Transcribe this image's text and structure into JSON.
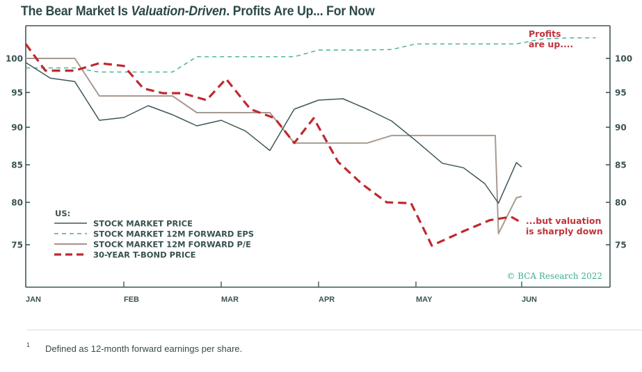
{
  "chart_data": {
    "type": "line",
    "title_parts": [
      "The Bear Market Is ",
      "Valuation-Driven",
      ". Profits Are Up... For Now"
    ],
    "title": "The Bear Market Is Valuation-Driven. Profits Are Up... For Now",
    "xlabel": "",
    "ylabel": "",
    "x_tick_labels": [
      "JAN",
      "FEB",
      "MAR",
      "APR",
      "MAY",
      "JUN"
    ],
    "y_ticks": [
      100,
      95,
      90,
      85,
      80,
      75
    ],
    "ylim": [
      70,
      104
    ],
    "grid": false,
    "legend": {
      "title": "US:",
      "placement": "bottom-left",
      "entries": [
        {
          "name": "STOCK MARKET PRICE",
          "color": "#3d5656",
          "style": "solid"
        },
        {
          "name": "STOCK MARKET 12M FORWARD EPS",
          "color": "#3fae8f",
          "style": "dashed"
        },
        {
          "name": "STOCK MARKET 12M FORWARD P/E",
          "color": "#a69a90",
          "style": "solid"
        },
        {
          "name": "30-YEAR T-BOND PRICE",
          "color": "#c0282f",
          "style": "dashed-thick"
        }
      ]
    },
    "x": [
      0,
      0.25,
      0.5,
      0.75,
      1.0,
      1.25,
      1.5,
      1.75,
      2.0,
      2.25,
      2.5,
      2.75,
      3.0,
      3.25,
      3.5,
      3.75,
      4.0,
      4.25,
      4.5,
      4.75,
      5.0
    ],
    "x_unit": "months since start of January (JAN=0 ... JUN=5)",
    "series": [
      {
        "name": "STOCK MARKET PRICE",
        "values": [
          99.4,
          97.1,
          96.6,
          91.0,
          91.4,
          93.1,
          91.8,
          90.2,
          91.0,
          89.5,
          86.9,
          92.6,
          93.9,
          94.1,
          92.6,
          90.9,
          88.2,
          85.2,
          84.6,
          82.5,
          79.9,
          85.3,
          84.7
        ],
        "x": [
          0,
          0.25,
          0.5,
          0.75,
          1.0,
          1.25,
          1.5,
          1.75,
          2.0,
          2.25,
          2.5,
          2.75,
          3.0,
          3.25,
          3.5,
          3.75,
          4.0,
          4.25,
          4.45,
          4.65,
          4.78,
          4.95,
          5.0
        ]
      },
      {
        "name": "STOCK MARKET 12M FORWARD EPS",
        "values": [
          98.6,
          98.6,
          98.6,
          98.0,
          98.0,
          98.0,
          98.0,
          100.3,
          100.3,
          100.3,
          100.3,
          100.3,
          101.5,
          101.5,
          101.5,
          101.6,
          102.6,
          102.6,
          102.6,
          102.6,
          102.6,
          103.5,
          103.7,
          103.7
        ],
        "x": [
          0,
          0.25,
          0.5,
          0.75,
          1.0,
          1.25,
          1.5,
          1.75,
          2.0,
          2.25,
          2.5,
          2.75,
          3.0,
          3.25,
          3.5,
          3.75,
          4.0,
          4.25,
          4.5,
          4.75,
          4.95,
          5.2,
          5.45,
          5.7
        ]
      },
      {
        "name": "STOCK MARKET 12M FORWARD P/E",
        "values": [
          100,
          100,
          100,
          94.5,
          94.5,
          94.5,
          94.5,
          92.1,
          92.1,
          92.1,
          92.1,
          87.9,
          87.9,
          87.9,
          87.9,
          88.9,
          88.9,
          88.9,
          88.9,
          88.9,
          76.3,
          80.6,
          80.8
        ],
        "x": [
          0,
          0.25,
          0.5,
          0.75,
          1.0,
          1.25,
          1.5,
          1.75,
          2.0,
          2.25,
          2.5,
          2.75,
          3.0,
          3.25,
          3.5,
          3.75,
          4.0,
          4.25,
          4.5,
          4.75,
          4.78,
          4.95,
          5.0
        ]
      },
      {
        "name": "30-YEAR T-BOND PRICE",
        "values": [
          102.6,
          98.2,
          98.2,
          99.3,
          98.9,
          95.6,
          94.9,
          94.9,
          93.9,
          97.0,
          92.6,
          91.3,
          87.9,
          91.3,
          85.4,
          82.4,
          80.0,
          79.9,
          74.9,
          76.6,
          77.9,
          78.3,
          77.6
        ],
        "x": [
          0,
          0.2,
          0.5,
          0.75,
          1.0,
          1.2,
          1.4,
          1.6,
          1.85,
          2.05,
          2.3,
          2.55,
          2.75,
          2.95,
          3.2,
          3.45,
          3.7,
          3.95,
          4.15,
          4.45,
          4.7,
          4.9,
          5.0
        ]
      }
    ],
    "annotations": [
      {
        "text_lines": [
          "Profits",
          "are up...."
        ],
        "color": "#c0333a",
        "placement": "top-right"
      },
      {
        "text_lines": [
          "...but valuation",
          "is sharply down"
        ],
        "color": "#c0333a",
        "placement": "right, near bottom"
      }
    ],
    "credit": "© BCA Research 2022"
  },
  "footnote": {
    "number": "1",
    "text": "Defined as 12-month forward earnings per share."
  },
  "colors": {
    "axis": "#3d5656",
    "price": "#3d5656",
    "eps": "#3fae8f",
    "pe": "#a69a90",
    "tbond": "#c0282f",
    "annotation": "#c0333a"
  }
}
